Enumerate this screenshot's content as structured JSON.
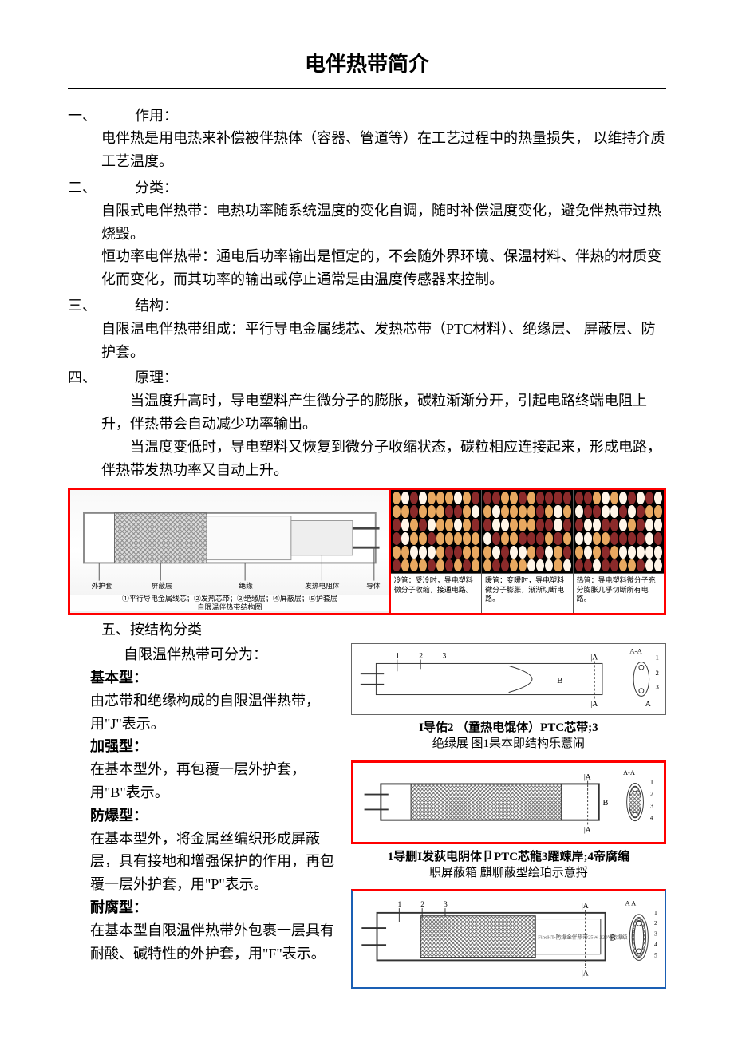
{
  "title": "电伴热带简介",
  "sections": {
    "s1": {
      "num": "一、",
      "label": "作用：",
      "body": "电伴热是用电热来补偿被伴热体（容器、管道等）在工艺过程中的热量损失，  以维持介质工艺温度。"
    },
    "s2": {
      "num": "二、",
      "label": "分类：",
      "body1": "自限式电伴热带：电热功率随系统温度的变化自调，随时补偿温度变化，避免伴热带过热烧毁。",
      "body2": "恒功率电伴热带：通电后功率输出是恒定的，不会随外界环境、保温材料、伴热的材质变化而变化，而其功率的输出或停止通常是由温度传感器来控制。"
    },
    "s3": {
      "num": "三、",
      "label": "结构：",
      "body": "自限温电伴热带组成：平行导电金属线芯、发热芯带（PTC材料）、绝缘层、  屏蔽层、防护套。"
    },
    "s4": {
      "num": "四、",
      "label": "原理：",
      "body1": "当温度升高时，导电塑料产生微分子的膨胀，碳粒渐渐分开，引起电路终端电阻上升，伴热带会自动减少功率输出。",
      "body2": "当温度变低时，导电塑料又恢复到微分子收缩状态，碳粒相应连接起来，形成电路，伴热带发热功率又自动上升。"
    },
    "s5": {
      "num": "五、",
      "label": "按结构分类",
      "intro": "自限温伴热带可分为："
    }
  },
  "types": {
    "basic": {
      "head": "基本型：",
      "body": "由芯带和绝缘构成的自限温伴热带，用\"J\"表示。"
    },
    "reinforced": {
      "head": "加强型：",
      "body": "在基本型外，再包覆一层外护套，用\"B\"表示。"
    },
    "explosion": {
      "head": "防爆型：",
      "body": "在基本型外，将金属丝编织形成屏蔽层，具有接地和增强保护的作用，再包覆一层外护套，用\"P\"表示。"
    },
    "corrosion": {
      "head": "耐腐型：",
      "body": "在基本型自限温伴热带外包裹一层具有耐酸、碱特性的外护套，用\"F\"表示。"
    }
  },
  "figure": {
    "border_color": "#ff0000",
    "struct_labels": [
      "外护套",
      "屏蔽层",
      "绝缘",
      "发热电阻体",
      "导体"
    ],
    "struct_caption_line1": "①平行导电金属线芯；②发热芯带；③绝缘层；④屏蔽层；⑤护套层",
    "struct_caption_line2": "自限温伴热带结构图",
    "scales": [
      {
        "head": "冷管：受冷时，导电塑料微分子收缩，接通电路。",
        "ratio": [
          0.15,
          0.25,
          0.6
        ]
      },
      {
        "head": "暖管：变暖时，导电塑料微分子膨胀，渐渐切断电路。",
        "ratio": [
          0.25,
          0.35,
          0.4
        ]
      },
      {
        "head": "热管：导电塑料微分子充分膨胀几乎切断所有电路。",
        "ratio": [
          0.4,
          0.45,
          0.15
        ]
      }
    ]
  },
  "captions": {
    "c1_line1": "I导佑2 （童热电馄体）PTC芯带;3",
    "c1_line2": "绝绿展  图1杲本即结构乐薏闹",
    "c2_line1": "1导删I发荻电阴体卩PTC芯龍3躍竦岸;4帝腐编",
    "c2_line2": "职屏蔽箱  麒聊蔽型绘珀示意捋"
  },
  "style": {
    "accent": "#ff0000",
    "text_color": "#000000",
    "bg": "#ffffff"
  }
}
